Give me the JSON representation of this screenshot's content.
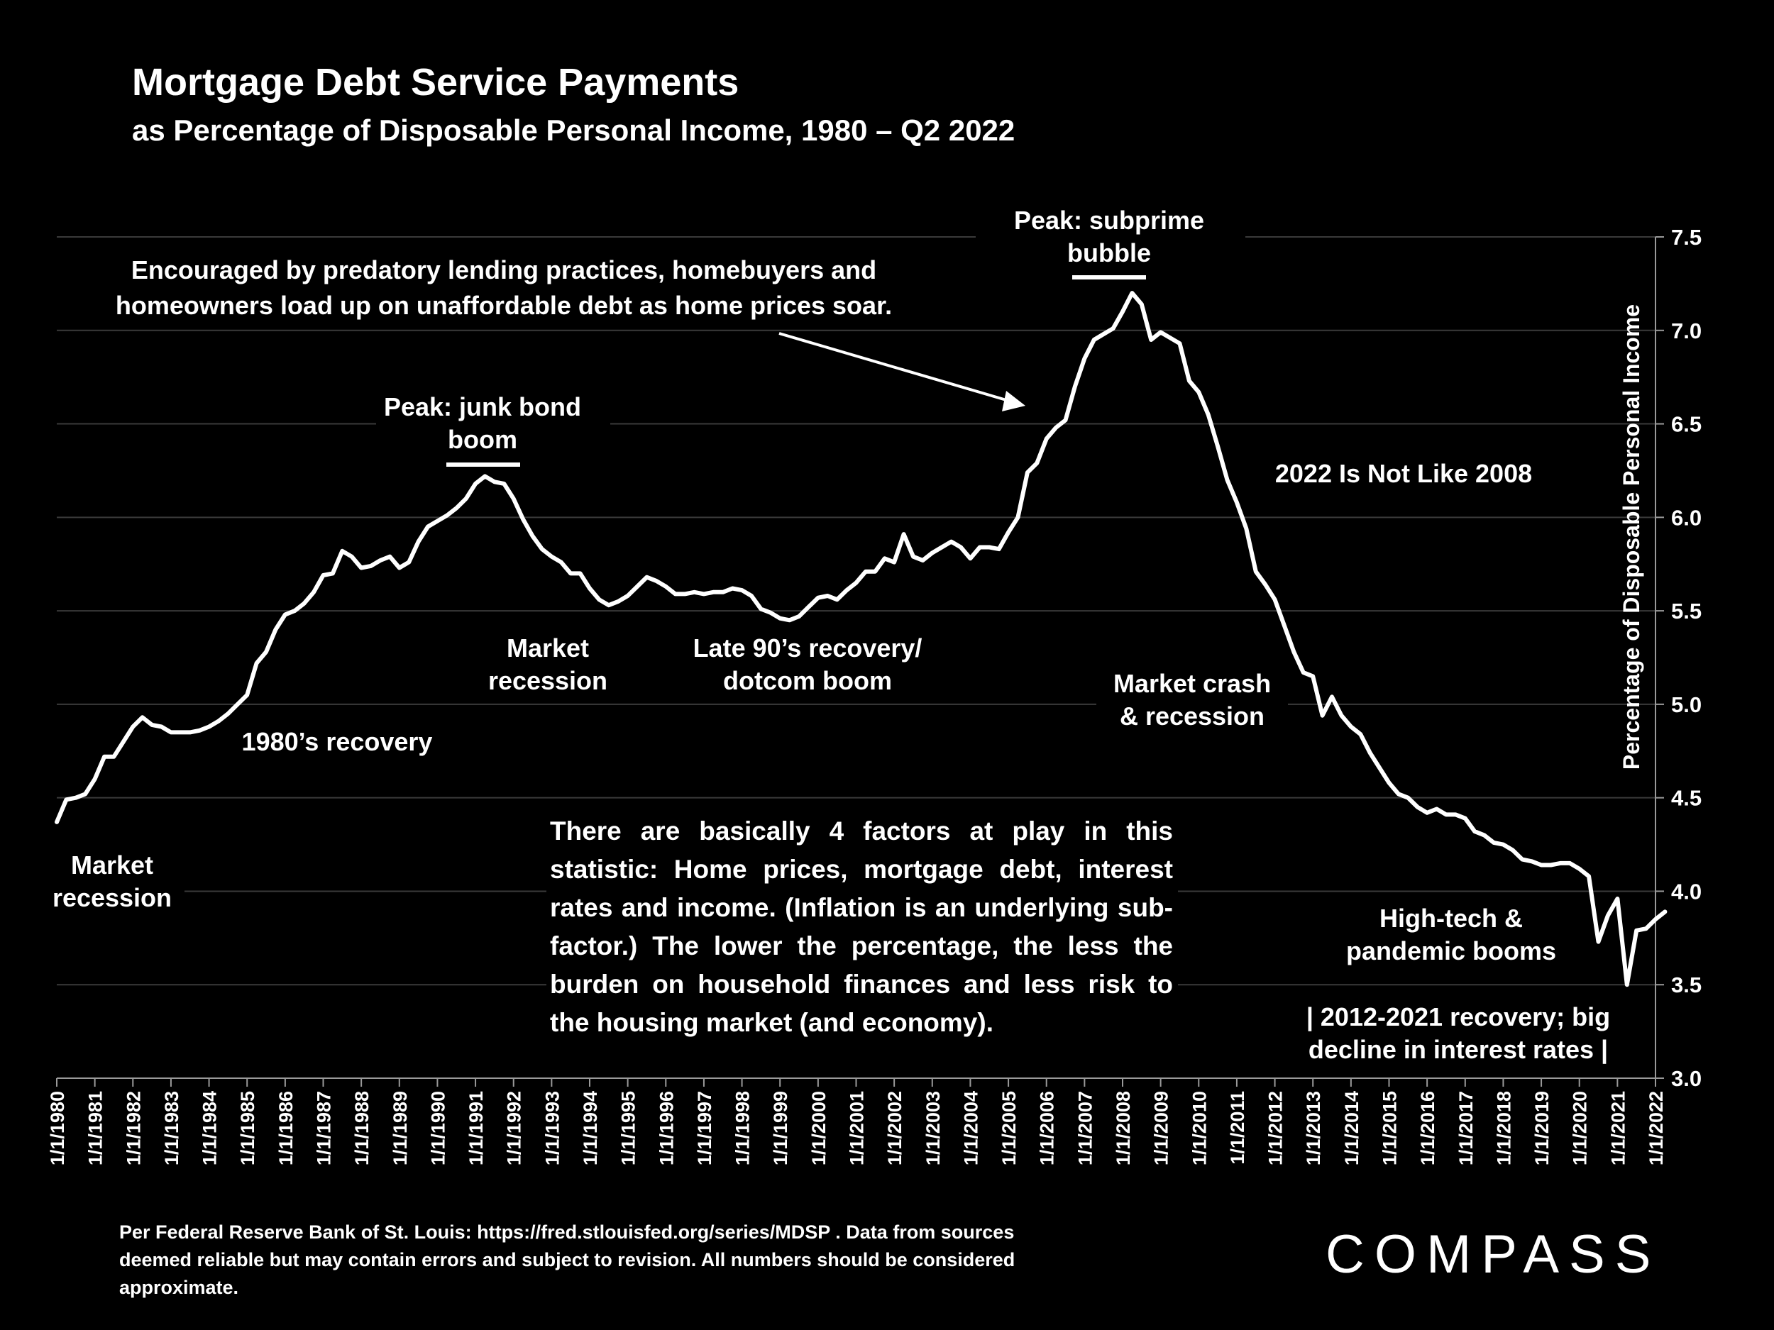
{
  "chart_data": {
    "type": "line",
    "title": "Mortgage Debt Service Payments",
    "subtitle": "as Percentage of Disposable Personal Income, 1980 – Q2 2022",
    "ylabel": "Percentage of Disposable Personal Income",
    "xlabel": "",
    "ylim": [
      3.0,
      7.5
    ],
    "yticks": [
      "7.5",
      "7.0",
      "6.5",
      "6.0",
      "5.5",
      "5.0",
      "4.5",
      "4.0",
      "3.5",
      "3.0"
    ],
    "xtick_labels": [
      "1/1/1980",
      "1/1/1981",
      "1/1/1982",
      "1/1/1983",
      "1/1/1984",
      "1/1/1985",
      "1/1/1986",
      "1/1/1987",
      "1/1/1988",
      "1/1/1989",
      "1/1/1990",
      "1/1/1991",
      "1/1/1992",
      "1/1/1993",
      "1/1/1994",
      "1/1/1995",
      "1/1/1996",
      "1/1/1997",
      "1/1/1998",
      "1/1/1999",
      "1/1/2000",
      "1/1/2001",
      "1/1/2002",
      "1/1/2003",
      "1/1/2004",
      "1/1/2005",
      "1/1/2006",
      "1/1/2007",
      "1/1/2008",
      "1/1/2009",
      "1/1/2010",
      "1/1/2011",
      "1/1/2012",
      "1/1/2013",
      "1/1/2014",
      "1/1/2015",
      "1/1/2016",
      "1/1/2017",
      "1/1/2018",
      "1/1/2019",
      "1/1/2020",
      "1/1/2021",
      "1/1/2022"
    ],
    "grid": true,
    "series": [
      {
        "color": "#ffffff",
        "points": [
          [
            "1980-01",
            4.37
          ],
          [
            "1980-04",
            4.49
          ],
          [
            "1980-07",
            4.5
          ],
          [
            "1980-10",
            4.52
          ],
          [
            "1981-01",
            4.6
          ],
          [
            "1981-04",
            4.72
          ],
          [
            "1981-07",
            4.72
          ],
          [
            "1981-10",
            4.8
          ],
          [
            "1982-01",
            4.88
          ],
          [
            "1982-04",
            4.93
          ],
          [
            "1982-07",
            4.89
          ],
          [
            "1982-10",
            4.88
          ],
          [
            "1983-01",
            4.85
          ],
          [
            "1983-04",
            4.85
          ],
          [
            "1983-07",
            4.85
          ],
          [
            "1983-10",
            4.86
          ],
          [
            "1984-01",
            4.88
          ],
          [
            "1984-04",
            4.91
          ],
          [
            "1984-07",
            4.95
          ],
          [
            "1984-10",
            5.0
          ],
          [
            "1985-01",
            5.05
          ],
          [
            "1985-04",
            5.22
          ],
          [
            "1985-07",
            5.28
          ],
          [
            "1985-10",
            5.4
          ],
          [
            "1986-01",
            5.48
          ],
          [
            "1986-04",
            5.5
          ],
          [
            "1986-07",
            5.54
          ],
          [
            "1986-10",
            5.6
          ],
          [
            "1987-01",
            5.69
          ],
          [
            "1987-04",
            5.7
          ],
          [
            "1987-07",
            5.82
          ],
          [
            "1987-10",
            5.79
          ],
          [
            "1988-01",
            5.73
          ],
          [
            "1988-04",
            5.74
          ],
          [
            "1988-07",
            5.77
          ],
          [
            "1988-10",
            5.79
          ],
          [
            "1989-01",
            5.73
          ],
          [
            "1989-04",
            5.76
          ],
          [
            "1989-07",
            5.87
          ],
          [
            "1989-10",
            5.95
          ],
          [
            "1990-01",
            5.98
          ],
          [
            "1990-04",
            6.01
          ],
          [
            "1990-07",
            6.05
          ],
          [
            "1990-10",
            6.1
          ],
          [
            "1991-01",
            6.18
          ],
          [
            "1991-04",
            6.22
          ],
          [
            "1991-07",
            6.19
          ],
          [
            "1991-10",
            6.18
          ],
          [
            "1992-01",
            6.1
          ],
          [
            "1992-04",
            5.99
          ],
          [
            "1992-07",
            5.9
          ],
          [
            "1992-10",
            5.83
          ],
          [
            "1993-01",
            5.79
          ],
          [
            "1993-04",
            5.76
          ],
          [
            "1993-07",
            5.7
          ],
          [
            "1993-10",
            5.7
          ],
          [
            "1994-01",
            5.62
          ],
          [
            "1994-04",
            5.56
          ],
          [
            "1994-07",
            5.53
          ],
          [
            "1994-10",
            5.55
          ],
          [
            "1995-01",
            5.58
          ],
          [
            "1995-04",
            5.63
          ],
          [
            "1995-07",
            5.68
          ],
          [
            "1995-10",
            5.66
          ],
          [
            "1996-01",
            5.63
          ],
          [
            "1996-04",
            5.59
          ],
          [
            "1996-07",
            5.59
          ],
          [
            "1996-10",
            5.6
          ],
          [
            "1997-01",
            5.59
          ],
          [
            "1997-04",
            5.6
          ],
          [
            "1997-07",
            5.6
          ],
          [
            "1997-10",
            5.62
          ],
          [
            "1998-01",
            5.61
          ],
          [
            "1998-04",
            5.58
          ],
          [
            "1998-07",
            5.51
          ],
          [
            "1998-10",
            5.49
          ],
          [
            "1999-01",
            5.46
          ],
          [
            "1999-04",
            5.45
          ],
          [
            "1999-07",
            5.47
          ],
          [
            "1999-10",
            5.52
          ],
          [
            "2000-01",
            5.57
          ],
          [
            "2000-04",
            5.58
          ],
          [
            "2000-07",
            5.56
          ],
          [
            "2000-10",
            5.61
          ],
          [
            "2001-01",
            5.65
          ],
          [
            "2001-04",
            5.71
          ],
          [
            "2001-07",
            5.71
          ],
          [
            "2001-10",
            5.78
          ],
          [
            "2002-01",
            5.76
          ],
          [
            "2002-04",
            5.91
          ],
          [
            "2002-07",
            5.79
          ],
          [
            "2002-10",
            5.77
          ],
          [
            "2003-01",
            5.81
          ],
          [
            "2003-04",
            5.84
          ],
          [
            "2003-07",
            5.87
          ],
          [
            "2003-10",
            5.84
          ],
          [
            "2004-01",
            5.78
          ],
          [
            "2004-04",
            5.84
          ],
          [
            "2004-07",
            5.84
          ],
          [
            "2004-10",
            5.83
          ],
          [
            "2005-01",
            5.92
          ],
          [
            "2005-04",
            6.0
          ],
          [
            "2005-07",
            6.24
          ],
          [
            "2005-10",
            6.29
          ],
          [
            "2006-01",
            6.42
          ],
          [
            "2006-04",
            6.48
          ],
          [
            "2006-07",
            6.52
          ],
          [
            "2006-10",
            6.7
          ],
          [
            "2007-01",
            6.85
          ],
          [
            "2007-04",
            6.95
          ],
          [
            "2007-07",
            6.98
          ],
          [
            "2007-10",
            7.01
          ],
          [
            "2008-01",
            7.1
          ],
          [
            "2008-04",
            7.2
          ],
          [
            "2008-07",
            7.14
          ],
          [
            "2008-10",
            6.95
          ],
          [
            "2009-01",
            6.99
          ],
          [
            "2009-04",
            6.96
          ],
          [
            "2009-07",
            6.93
          ],
          [
            "2009-10",
            6.73
          ],
          [
            "2010-01",
            6.67
          ],
          [
            "2010-04",
            6.55
          ],
          [
            "2010-07",
            6.38
          ],
          [
            "2010-10",
            6.2
          ],
          [
            "2011-01",
            6.08
          ],
          [
            "2011-04",
            5.94
          ],
          [
            "2011-07",
            5.71
          ],
          [
            "2011-10",
            5.64
          ],
          [
            "2012-01",
            5.56
          ],
          [
            "2012-04",
            5.42
          ],
          [
            "2012-07",
            5.28
          ],
          [
            "2012-10",
            5.17
          ],
          [
            "2013-01",
            5.15
          ],
          [
            "2013-04",
            4.94
          ],
          [
            "2013-07",
            5.04
          ],
          [
            "2013-10",
            4.94
          ],
          [
            "2014-01",
            4.88
          ],
          [
            "2014-04",
            4.84
          ],
          [
            "2014-07",
            4.74
          ],
          [
            "2014-10",
            4.66
          ],
          [
            "2015-01",
            4.58
          ],
          [
            "2015-04",
            4.52
          ],
          [
            "2015-07",
            4.5
          ],
          [
            "2015-10",
            4.45
          ],
          [
            "2016-01",
            4.42
          ],
          [
            "2016-04",
            4.44
          ],
          [
            "2016-07",
            4.41
          ],
          [
            "2016-10",
            4.41
          ],
          [
            "2017-01",
            4.39
          ],
          [
            "2017-04",
            4.32
          ],
          [
            "2017-07",
            4.3
          ],
          [
            "2017-10",
            4.26
          ],
          [
            "2018-01",
            4.25
          ],
          [
            "2018-04",
            4.22
          ],
          [
            "2018-07",
            4.17
          ],
          [
            "2018-10",
            4.16
          ],
          [
            "2019-01",
            4.14
          ],
          [
            "2019-04",
            4.14
          ],
          [
            "2019-07",
            4.15
          ],
          [
            "2019-10",
            4.15
          ],
          [
            "2020-01",
            4.12
          ],
          [
            "2020-04",
            4.08
          ],
          [
            "2020-07",
            3.73
          ],
          [
            "2020-10",
            3.87
          ],
          [
            "2021-01",
            3.96
          ],
          [
            "2021-04",
            3.5
          ],
          [
            "2021-07",
            3.79
          ],
          [
            "2021-10",
            3.8
          ],
          [
            "2022-01",
            3.85
          ],
          [
            "2022-04",
            3.89
          ]
        ]
      }
    ],
    "annotations": {
      "recession_1980": [
        "Market",
        "recession"
      ],
      "recovery_1980s": [
        "1980’s recovery"
      ],
      "peak_junk_bond": [
        "Peak: junk bond",
        "boom"
      ],
      "recession_1990s": [
        "Market",
        "recession"
      ],
      "late_90s": [
        "Late 90’s recovery/",
        "dotcom boom"
      ],
      "predatory": [
        "Encouraged by predatory lending practices, homebuyers and",
        "homeowners load up on unaffordable debt as home prices soar."
      ],
      "peak_subprime": [
        "Peak: subprime",
        "bubble"
      ],
      "not_like_2008": [
        "2022 Is Not Like 2008"
      ],
      "crash": [
        "Market crash",
        "& recession"
      ],
      "hightech": [
        "High-tech &",
        "pandemic booms"
      ],
      "recovery_2012": [
        "|  2012-2021 recovery; big",
        "decline in interest rates  |"
      ]
    }
  },
  "factors_text": "There are basically 4 factors at play in this statistic: Home prices, mortgage debt, interest rates and income. (Inflation is an underlying sub-factor.) The lower the percentage, the less the burden on household finances and less risk to the housing market (and economy).",
  "footnote": "Per Federal Reserve Bank of St. Louis: https://fred.stlouisfed.org/series/MDSP . Data from sources deemed reliable but may contain errors and subject to revision. All numbers should be considered approximate.",
  "logo": "COMPASS",
  "colors": {
    "background": "#000000",
    "line": "#ffffff",
    "highlight": "#e8000b",
    "grid": "#3a3a3a"
  }
}
